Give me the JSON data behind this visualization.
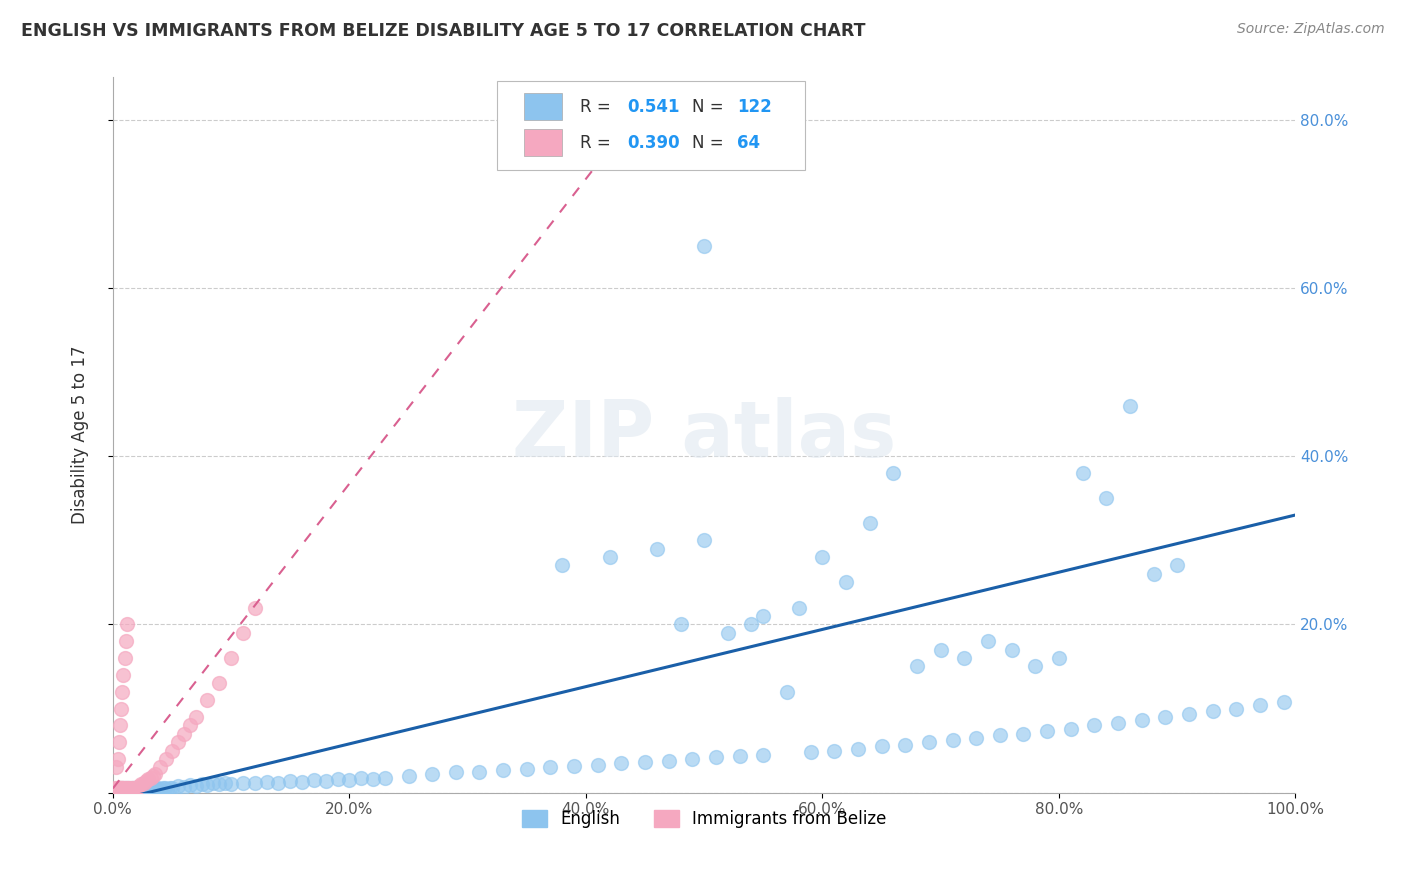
{
  "title": "ENGLISH VS IMMIGRANTS FROM BELIZE DISABILITY AGE 5 TO 17 CORRELATION CHART",
  "source": "Source: ZipAtlas.com",
  "ylabel": "Disability Age 5 to 17",
  "xlim": [
    0,
    1.0
  ],
  "ylim": [
    0,
    0.85
  ],
  "xticks": [
    0.0,
    0.2,
    0.4,
    0.6,
    0.8,
    1.0
  ],
  "xtick_labels": [
    "0.0%",
    "20.0%",
    "40.0%",
    "60.0%",
    "80.0%",
    "100.0%"
  ],
  "yticks": [
    0.0,
    0.2,
    0.4,
    0.6,
    0.8
  ],
  "ytick_labels": [
    "",
    "20.0%",
    "40.0%",
    "60.0%",
    "80.0%"
  ],
  "legend_english_R": "0.541",
  "legend_english_N": "122",
  "legend_belize_R": "0.390",
  "legend_belize_N": "64",
  "english_color": "#8DC4EE",
  "belize_color": "#F5A8C0",
  "english_line_color": "#1A5FA8",
  "belize_line_color": "#D96090",
  "legend_label_english": "English",
  "legend_label_belize": "Immigrants from Belize",
  "background_color": "#ffffff",
  "grid_color": "#cccccc",
  "english_scatter_x": [
    0.005,
    0.007,
    0.008,
    0.009,
    0.01,
    0.011,
    0.012,
    0.013,
    0.014,
    0.015,
    0.016,
    0.017,
    0.018,
    0.019,
    0.02,
    0.021,
    0.022,
    0.023,
    0.024,
    0.025,
    0.026,
    0.027,
    0.028,
    0.029,
    0.03,
    0.032,
    0.034,
    0.036,
    0.038,
    0.04,
    0.042,
    0.044,
    0.046,
    0.048,
    0.05,
    0.055,
    0.06,
    0.065,
    0.07,
    0.075,
    0.08,
    0.085,
    0.09,
    0.095,
    0.1,
    0.11,
    0.12,
    0.13,
    0.14,
    0.15,
    0.16,
    0.17,
    0.18,
    0.19,
    0.2,
    0.21,
    0.22,
    0.23,
    0.25,
    0.27,
    0.29,
    0.31,
    0.33,
    0.35,
    0.37,
    0.39,
    0.41,
    0.43,
    0.45,
    0.47,
    0.49,
    0.51,
    0.53,
    0.55,
    0.57,
    0.59,
    0.61,
    0.63,
    0.65,
    0.67,
    0.69,
    0.71,
    0.73,
    0.75,
    0.77,
    0.79,
    0.81,
    0.83,
    0.85,
    0.87,
    0.89,
    0.91,
    0.93,
    0.95,
    0.97,
    0.99,
    0.38,
    0.42,
    0.46,
    0.5,
    0.52,
    0.54,
    0.48,
    0.55,
    0.58,
    0.6,
    0.62,
    0.64,
    0.66,
    0.68,
    0.7,
    0.72,
    0.74,
    0.76,
    0.78,
    0.8,
    0.82,
    0.84,
    0.86,
    0.88,
    0.9,
    0.5
  ],
  "english_scatter_y": [
    0.005,
    0.003,
    0.004,
    0.006,
    0.003,
    0.005,
    0.004,
    0.006,
    0.003,
    0.005,
    0.004,
    0.006,
    0.003,
    0.005,
    0.004,
    0.006,
    0.003,
    0.005,
    0.004,
    0.006,
    0.005,
    0.003,
    0.006,
    0.004,
    0.005,
    0.006,
    0.004,
    0.005,
    0.006,
    0.004,
    0.005,
    0.006,
    0.004,
    0.005,
    0.006,
    0.008,
    0.007,
    0.009,
    0.008,
    0.01,
    0.009,
    0.011,
    0.01,
    0.012,
    0.01,
    0.012,
    0.011,
    0.013,
    0.012,
    0.014,
    0.013,
    0.015,
    0.014,
    0.016,
    0.015,
    0.017,
    0.016,
    0.018,
    0.02,
    0.022,
    0.024,
    0.025,
    0.027,
    0.028,
    0.03,
    0.032,
    0.033,
    0.035,
    0.037,
    0.038,
    0.04,
    0.042,
    0.043,
    0.045,
    0.12,
    0.048,
    0.05,
    0.052,
    0.055,
    0.057,
    0.06,
    0.062,
    0.065,
    0.068,
    0.07,
    0.073,
    0.076,
    0.08,
    0.083,
    0.086,
    0.09,
    0.093,
    0.097,
    0.1,
    0.104,
    0.108,
    0.27,
    0.28,
    0.29,
    0.3,
    0.19,
    0.2,
    0.2,
    0.21,
    0.22,
    0.28,
    0.25,
    0.32,
    0.38,
    0.15,
    0.17,
    0.16,
    0.18,
    0.17,
    0.15,
    0.16,
    0.38,
    0.35,
    0.46,
    0.26,
    0.27,
    0.65
  ],
  "belize_scatter_x": [
    0.002,
    0.003,
    0.004,
    0.005,
    0.006,
    0.007,
    0.008,
    0.009,
    0.01,
    0.011,
    0.012,
    0.013,
    0.014,
    0.015,
    0.016,
    0.017,
    0.018,
    0.019,
    0.02,
    0.022,
    0.024,
    0.026,
    0.028,
    0.03,
    0.032,
    0.034,
    0.036,
    0.04,
    0.045,
    0.05,
    0.055,
    0.06,
    0.065,
    0.07,
    0.08,
    0.09,
    0.1,
    0.11,
    0.12,
    0.002,
    0.003,
    0.004,
    0.005,
    0.006,
    0.007,
    0.008,
    0.009,
    0.01,
    0.011,
    0.012,
    0.003,
    0.004,
    0.005,
    0.006,
    0.007,
    0.008,
    0.009,
    0.01,
    0.002,
    0.003,
    0.004,
    0.005,
    0.006,
    0.002
  ],
  "belize_scatter_y": [
    0.003,
    0.004,
    0.005,
    0.006,
    0.004,
    0.005,
    0.006,
    0.004,
    0.005,
    0.006,
    0.004,
    0.005,
    0.006,
    0.004,
    0.005,
    0.006,
    0.004,
    0.005,
    0.006,
    0.008,
    0.01,
    0.012,
    0.014,
    0.016,
    0.018,
    0.02,
    0.022,
    0.03,
    0.04,
    0.05,
    0.06,
    0.07,
    0.08,
    0.09,
    0.11,
    0.13,
    0.16,
    0.19,
    0.22,
    0.005,
    0.03,
    0.04,
    0.06,
    0.08,
    0.1,
    0.12,
    0.14,
    0.16,
    0.18,
    0.2,
    0.003,
    0.004,
    0.005,
    0.006,
    0.004,
    0.005,
    0.006,
    0.004,
    0.003,
    0.004,
    0.005,
    0.006,
    0.004,
    0.003
  ],
  "eng_line_x0": 0.0,
  "eng_line_x1": 1.0,
  "eng_line_y0": -0.01,
  "eng_line_y1": 0.33,
  "bel_line_x0": 0.0,
  "bel_line_x1": 0.45,
  "bel_line_y0": 0.005,
  "bel_line_y1": 0.82
}
